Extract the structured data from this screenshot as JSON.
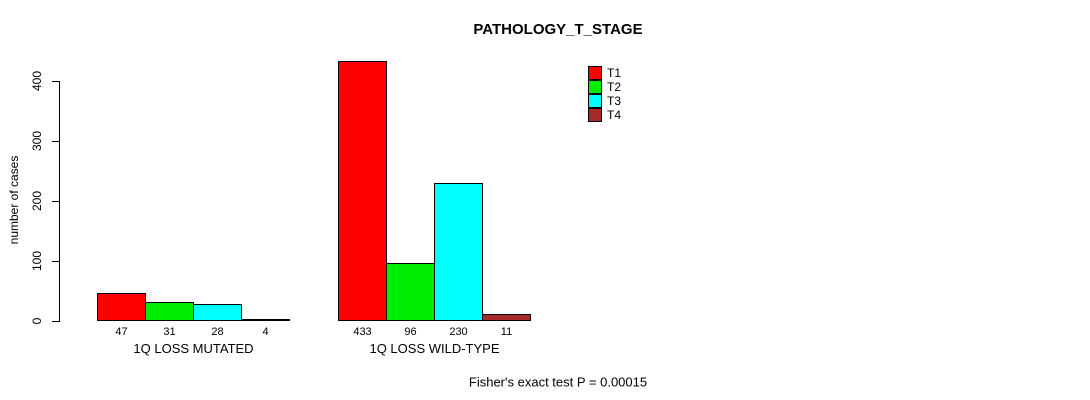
{
  "chart_data": {
    "type": "bar",
    "title": "PATHOLOGY_T_STAGE",
    "ylabel": "number of cases",
    "ylim": [
      0,
      400
    ],
    "yticks": [
      0,
      100,
      200,
      300,
      400
    ],
    "grid": false,
    "legend_position": "top-right",
    "categories": [
      "1Q LOSS MUTATED",
      "1Q LOSS WILD-TYPE"
    ],
    "series": [
      {
        "name": "T1",
        "color": "#FF0000",
        "values": [
          47,
          433
        ]
      },
      {
        "name": "T2",
        "color": "#00EE00",
        "values": [
          31,
          96
        ]
      },
      {
        "name": "T3",
        "color": "#00FFFF",
        "values": [
          28,
          230
        ]
      },
      {
        "name": "T4",
        "color": "#A52A2A",
        "values": [
          4,
          11
        ]
      }
    ],
    "bar_value_labels": [
      [
        "47",
        "31",
        "28",
        "4"
      ],
      [
        "433",
        "96",
        "230",
        "11"
      ]
    ],
    "footnote": "Fisher's exact test P = 0.00015",
    "axis_color": "#000000",
    "background": "#FFFFFF"
  }
}
